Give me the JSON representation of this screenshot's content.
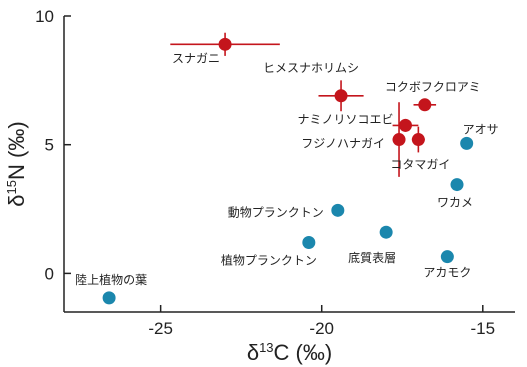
{
  "chart_data": {
    "type": "scatter",
    "x_axis": {
      "label_prefix": "δ",
      "label_sup": "13",
      "label_suffix": "C (‰)",
      "min": -28,
      "max": -14,
      "ticks": [
        -25,
        -20,
        -15
      ],
      "tick_labels": [
        "-25",
        "-20",
        "-15"
      ]
    },
    "y_axis": {
      "label_prefix": "δ",
      "label_sup": "15",
      "label_suffix": "N (‰)",
      "min": -1.5,
      "max": 10,
      "ticks": [
        0,
        5,
        10
      ],
      "tick_labels": [
        "0",
        "5",
        "10"
      ]
    },
    "colors": {
      "red": "#c4151c",
      "blue": "#1b87ad",
      "axis": "#222222"
    },
    "points": [
      {
        "label": "スナガニ",
        "x": -23.0,
        "y": 8.9,
        "xerr": 1.7,
        "yerr": 0.45,
        "group": "red"
      },
      {
        "label": "ヒメスナホリムシ",
        "x": -19.4,
        "y": 6.9,
        "xerr": 0.7,
        "yerr": 0.6,
        "group": "red"
      },
      {
        "label": "コクボフクロアミ",
        "x": -16.8,
        "y": 6.55,
        "xerr": 0.35,
        "yerr": 0.2,
        "group": "red"
      },
      {
        "label": "ナミノリソコエビ",
        "x": -17.4,
        "y": 5.75,
        "xerr": 0.4,
        "yerr": 0.25,
        "group": "red"
      },
      {
        "label": "フジノハナガイ",
        "x": -17.6,
        "y": 5.2,
        "xerr": 0.2,
        "yerr": 1.45,
        "group": "red"
      },
      {
        "label": "コタマガイ",
        "x": -17.0,
        "y": 5.2,
        "xerr": 0.2,
        "yerr": 0.5,
        "group": "red"
      },
      {
        "label": "アオサ",
        "x": -15.5,
        "y": 5.05,
        "xerr": 0,
        "yerr": 0,
        "group": "blue"
      },
      {
        "label": "ワカメ",
        "x": -15.8,
        "y": 3.45,
        "xerr": 0,
        "yerr": 0,
        "group": "blue"
      },
      {
        "label": "動物プランクトン",
        "x": -19.5,
        "y": 2.45,
        "xerr": 0,
        "yerr": 0,
        "group": "blue"
      },
      {
        "label": "底質表層",
        "x": -18.0,
        "y": 1.6,
        "xerr": 0,
        "yerr": 0,
        "group": "blue"
      },
      {
        "label": "植物プランクトン",
        "x": -20.4,
        "y": 1.2,
        "xerr": 0,
        "yerr": 0,
        "group": "blue"
      },
      {
        "label": "アカモク",
        "x": -16.1,
        "y": 0.65,
        "xerr": 0,
        "yerr": 0,
        "group": "blue"
      },
      {
        "label": "陸上植物の葉",
        "x": -26.6,
        "y": -0.95,
        "xerr": 0,
        "yerr": 0,
        "group": "blue"
      }
    ]
  }
}
